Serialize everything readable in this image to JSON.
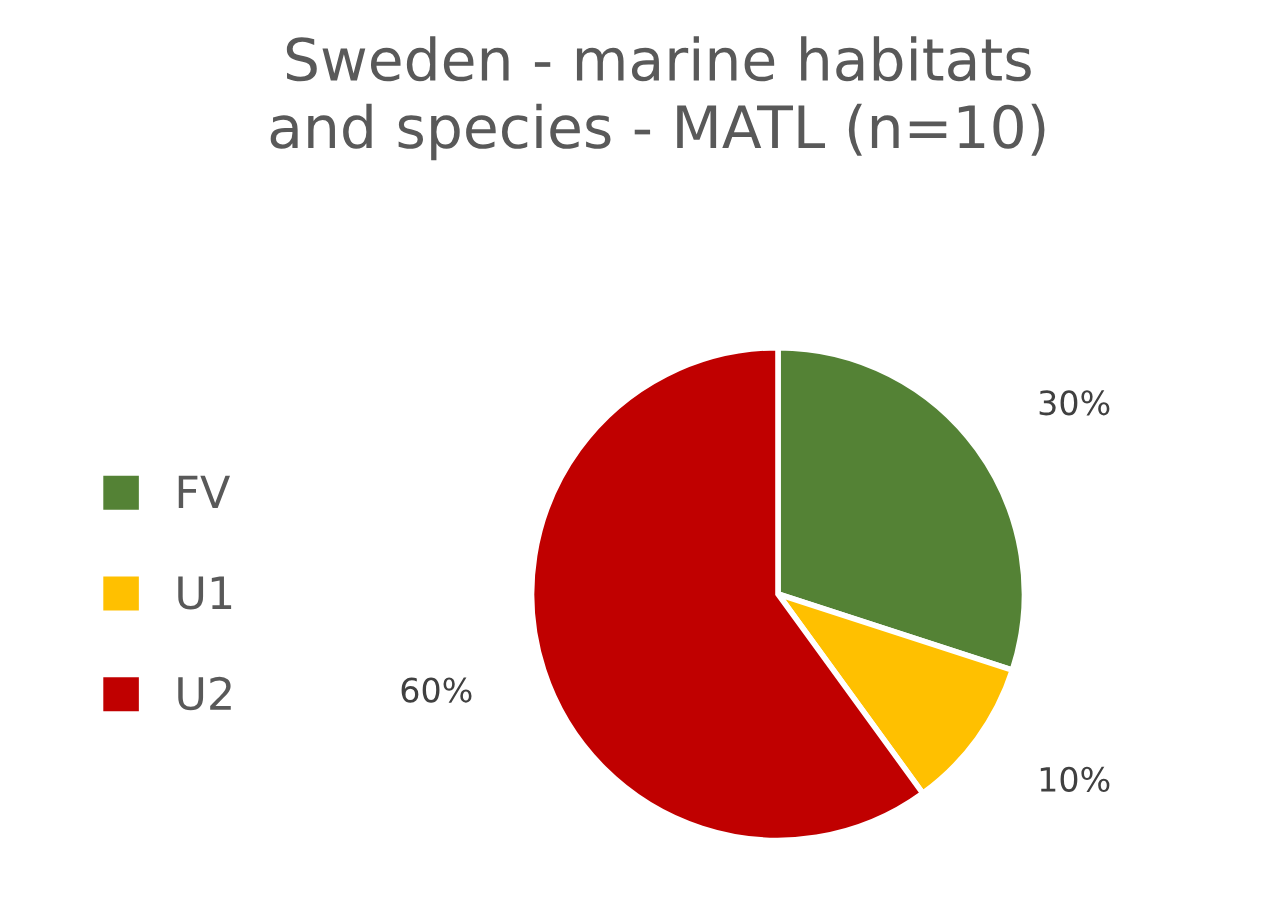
{
  "chart_data": {
    "type": "pie",
    "title": "Sweden - marine habitats\nand species - MATL (n=10)",
    "categories": [
      "FV",
      "U1",
      "U2"
    ],
    "values": [
      30,
      10,
      60
    ],
    "colors": [
      "#548235",
      "#ffc000",
      "#c00000"
    ],
    "value_labels": [
      "30%",
      "10%",
      "60%"
    ],
    "legend": "left"
  }
}
